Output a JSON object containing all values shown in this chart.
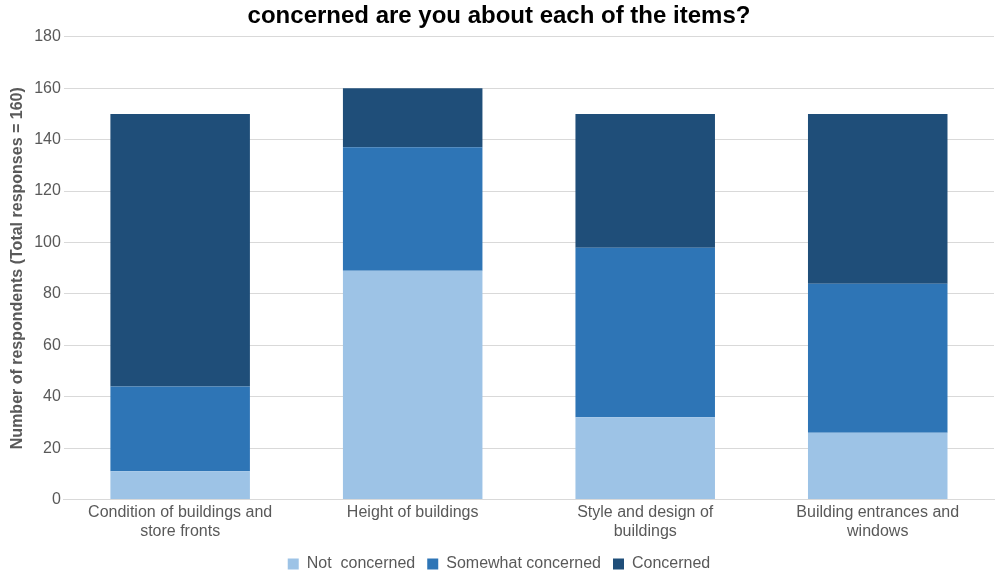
{
  "chart_data": {
    "type": "bar",
    "title": "concerned are you about each of the items?",
    "ylabel": "Number of respondents (Total responses = 160)",
    "categories": [
      "Condition of buildings and store fronts",
      "Height of buildings",
      "Style and design of buildings",
      "Building entrances and windows"
    ],
    "series": [
      {
        "name": "Not  concerned",
        "color": "#9dc3e6",
        "values": [
          11,
          89,
          32,
          26
        ]
      },
      {
        "name": "Somewhat concerned",
        "color": "#2e75b6",
        "values": [
          33,
          48,
          66,
          58
        ]
      },
      {
        "name": "Concerned",
        "color": "#1f4e79",
        "values": [
          106,
          23,
          52,
          66
        ]
      }
    ],
    "stacked": true,
    "ylim": [
      0,
      180
    ],
    "yticks": [
      0,
      20,
      40,
      60,
      80,
      100,
      120,
      140,
      160,
      180
    ],
    "grid": "y",
    "legend": "bottom"
  }
}
